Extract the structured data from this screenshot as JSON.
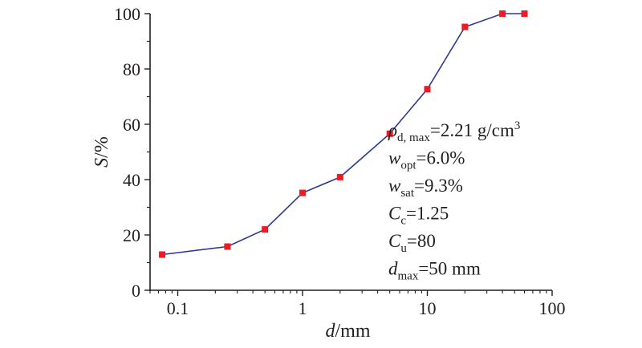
{
  "chart_data": {
    "type": "line",
    "title": "",
    "x_scale": "log",
    "xlim": [
      0.06,
      100
    ],
    "ylim": [
      0,
      100
    ],
    "x_ticks": [
      0.1,
      1,
      10,
      100
    ],
    "x_tick_labels": [
      "0.1",
      "1",
      "10",
      "100"
    ],
    "y_ticks": [
      0,
      20,
      40,
      60,
      80,
      100
    ],
    "y_tick_labels": [
      "0",
      "20",
      "40",
      "60",
      "80",
      "100"
    ],
    "xlabel": {
      "var": "d",
      "unit": "/mm"
    },
    "ylabel": {
      "var": "S",
      "unit": "/%"
    },
    "grid": false,
    "legend": "none",
    "line_color": "#2b3990",
    "marker_color": "#ed1c24",
    "series": [
      {
        "x": [
          0.075,
          0.25,
          0.5,
          1,
          2,
          5,
          10,
          20,
          40,
          60
        ],
        "y": [
          12.9,
          15.8,
          22.0,
          35.2,
          40.9,
          56.6,
          72.7,
          95.2,
          100,
          100
        ]
      }
    ],
    "annotations": [
      {
        "var": "ρ",
        "sub": "d, max",
        "eq": "=2.21 g/cm",
        "sup": "3"
      },
      {
        "var": "w",
        "sub": "opt",
        "eq": "=6.0%",
        "sup": ""
      },
      {
        "var": "w",
        "sub": "sat",
        "eq": "=9.3%",
        "sup": ""
      },
      {
        "var": "C",
        "sub": "c",
        "eq": "=1.25",
        "sup": ""
      },
      {
        "var": "C",
        "sub": "u",
        "eq": "=80",
        "sup": ""
      },
      {
        "var": "d",
        "sub": "max",
        "eq": "=50 mm",
        "sup": ""
      }
    ]
  }
}
